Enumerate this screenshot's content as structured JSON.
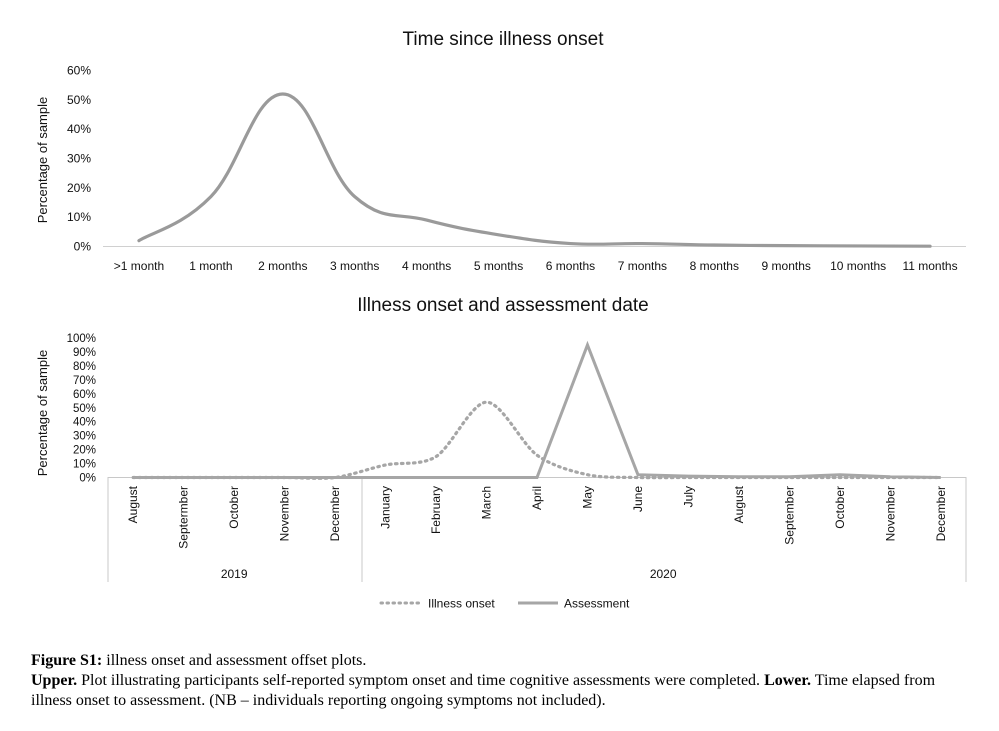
{
  "chart_data": [
    {
      "type": "line",
      "title": "Time since illness onset",
      "xlabel": "",
      "ylabel": "Percentage of sample",
      "ylim": [
        0,
        60
      ],
      "yticks": [
        "0%",
        "10%",
        "20%",
        "30%",
        "40%",
        "50%",
        "60%"
      ],
      "categories": [
        ">1 month",
        "1 month",
        "2 months",
        "3 months",
        "4 months",
        "5 months",
        "6 months",
        "7 months",
        "8 months",
        "9 months",
        "10 months",
        "11 months"
      ],
      "series": [
        {
          "name": "Time since illness onset",
          "values": [
            2,
            17,
            52,
            17,
            9,
            4,
            1,
            1,
            0.5,
            0.3,
            0.2,
            0.1
          ],
          "color": "#999999",
          "style": "solid"
        }
      ]
    },
    {
      "type": "line",
      "title": "Illness onset and assessment date",
      "xlabel": "",
      "ylabel": "Percentage of sample",
      "ylim": [
        0,
        100
      ],
      "yticks": [
        "0%",
        "10%",
        "20%",
        "30%",
        "40%",
        "50%",
        "60%",
        "70%",
        "80%",
        "90%",
        "100%"
      ],
      "categories": [
        "August",
        "Septermber",
        "October",
        "November",
        "December",
        "January",
        "February",
        "March",
        "April",
        "May",
        "June",
        "July",
        "August",
        "September",
        "October",
        "November",
        "December"
      ],
      "groups": [
        {
          "label": "2019",
          "count": 5
        },
        {
          "label": "2020",
          "count": 12
        }
      ],
      "legend_position": "bottom",
      "series": [
        {
          "name": "Illness onset",
          "values": [
            0,
            0,
            0,
            0,
            0,
            9,
            15,
            54,
            16,
            2,
            0,
            0,
            0,
            0,
            0,
            0,
            0
          ],
          "color": "#a6a6a6",
          "style": "dotted"
        },
        {
          "name": "Assessment",
          "values": [
            0,
            0,
            0,
            0,
            0,
            0,
            0,
            0,
            0,
            95,
            2,
            1,
            0.5,
            0.5,
            2,
            0.5,
            0
          ],
          "color": "#a6a6a6",
          "style": "solid"
        }
      ]
    }
  ],
  "caption": {
    "label": "Figure S1:",
    "text1": " illness onset and assessment offset plots.",
    "upper_label": "Upper.",
    "upper_text": " Plot illustrating participants self-reported symptom onset and time cognitive assessments were completed. ",
    "lower_label": "Lower.",
    "lower_text": " Time elapsed from illness onset to assessment. (NB – individuals reporting ongoing symptoms not included)."
  }
}
